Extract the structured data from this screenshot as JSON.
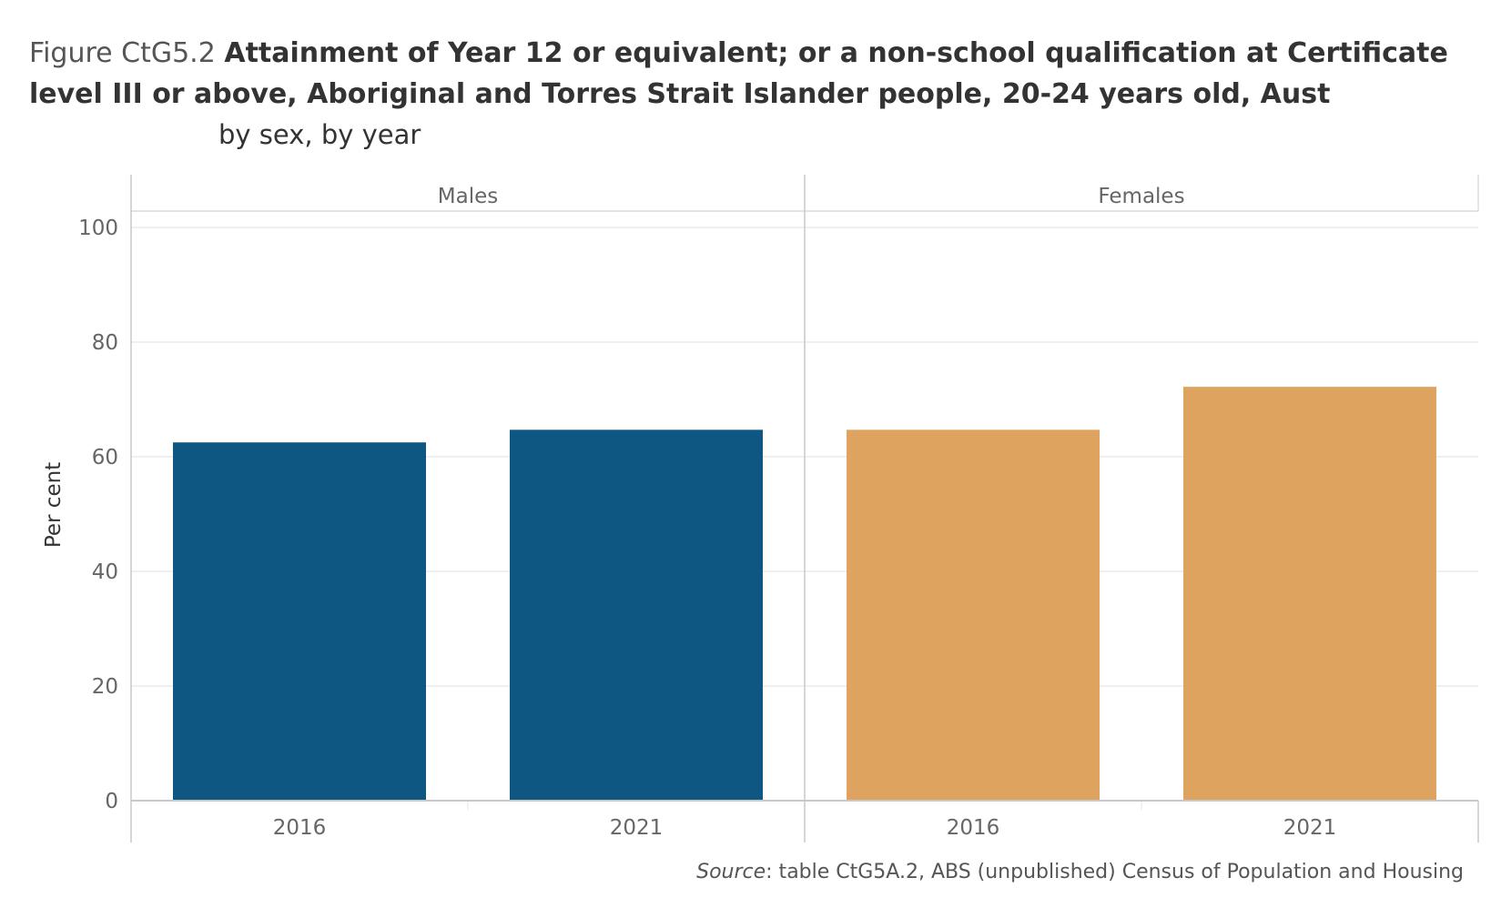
{
  "header": {
    "figure_label": "Figure CtG5.2",
    "title": "Attainment of Year 12 or equivalent; or a non-school qualification at Certificate level III or above, Aboriginal and Torres Strait Islander people, 20-24 years old, Aust",
    "subtitle": "by sex, by year"
  },
  "footer": {
    "source_label": "Source",
    "source_text": ": table CtG5A.2, ABS (unpublished) Census of Population and Housing"
  },
  "chart_data": {
    "type": "bar",
    "title": "Attainment of Year 12 or equivalent; or a non-school qualification at Certificate level III or above, Aboriginal and Torres Strait Islander people, 20-24 years old, Aust",
    "subtitle": "by sex, by year",
    "xlabel": "",
    "ylabel": "Per cent",
    "ylim": [
      0,
      100
    ],
    "yticks": [
      0,
      20,
      40,
      60,
      80,
      100
    ],
    "grid": true,
    "categories": [
      "2016",
      "2021"
    ],
    "panels": [
      {
        "name": "Males",
        "color": "#0f5783",
        "values": [
          62.5,
          64.7
        ]
      },
      {
        "name": "Females",
        "color": "#dea35e",
        "values": [
          64.7,
          72.2
        ]
      }
    ]
  }
}
